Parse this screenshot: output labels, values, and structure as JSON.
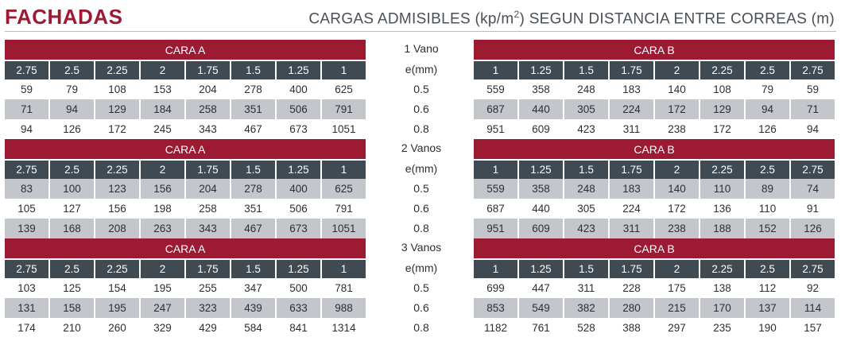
{
  "header": {
    "title": "FACHADAS",
    "subtitle": "CARGAS ADMISIBLES (kp/m2) SEGUN DISTANCIA ENTRE CORREAS (m)"
  },
  "colors": {
    "accent": "#9c1a32",
    "dark_header": "#3f4a53",
    "shade_row": "#c3c7cc"
  },
  "left_face": "CARA A",
  "right_face": "CARA B",
  "e_label": "e(mm)",
  "left_distances": [
    "2.75",
    "2.5",
    "2.25",
    "2",
    "1.75",
    "1.5",
    "1.25",
    "1"
  ],
  "right_distances": [
    "1",
    "1.25",
    "1.5",
    "1.75",
    "2",
    "2.25",
    "2.5",
    "2.75"
  ],
  "blocks": [
    {
      "vano": "1 Vano",
      "thickness": [
        "0.5",
        "0.6",
        "0.8"
      ],
      "left_rows": [
        [
          "59",
          "79",
          "108",
          "153",
          "204",
          "278",
          "400",
          "625"
        ],
        [
          "71",
          "94",
          "129",
          "184",
          "258",
          "351",
          "506",
          "791"
        ],
        [
          "94",
          "126",
          "172",
          "245",
          "343",
          "467",
          "673",
          "1051"
        ]
      ],
      "right_rows": [
        [
          "559",
          "358",
          "248",
          "183",
          "140",
          "108",
          "79",
          "59"
        ],
        [
          "687",
          "440",
          "305",
          "224",
          "172",
          "129",
          "94",
          "71"
        ],
        [
          "951",
          "609",
          "423",
          "311",
          "238",
          "172",
          "126",
          "94"
        ]
      ]
    },
    {
      "vano": "2 Vanos",
      "thickness": [
        "0.5",
        "0.6",
        "0.8"
      ],
      "left_rows": [
        [
          "83",
          "100",
          "123",
          "156",
          "204",
          "278",
          "400",
          "625"
        ],
        [
          "105",
          "127",
          "156",
          "198",
          "258",
          "351",
          "506",
          "791"
        ],
        [
          "139",
          "168",
          "208",
          "263",
          "343",
          "467",
          "673",
          "1051"
        ]
      ],
      "right_rows": [
        [
          "559",
          "358",
          "248",
          "183",
          "140",
          "110",
          "89",
          "74"
        ],
        [
          "687",
          "440",
          "305",
          "224",
          "172",
          "136",
          "110",
          "91"
        ],
        [
          "951",
          "609",
          "423",
          "311",
          "238",
          "188",
          "152",
          "126"
        ]
      ]
    },
    {
      "vano": "3 Vanos",
      "thickness": [
        "0.5",
        "0.6",
        "0.8"
      ],
      "left_rows": [
        [
          "103",
          "125",
          "154",
          "195",
          "255",
          "347",
          "500",
          "781"
        ],
        [
          "131",
          "158",
          "195",
          "247",
          "323",
          "439",
          "633",
          "988"
        ],
        [
          "174",
          "210",
          "260",
          "329",
          "429",
          "584",
          "841",
          "1314"
        ]
      ],
      "right_rows": [
        [
          "699",
          "447",
          "311",
          "228",
          "175",
          "138",
          "112",
          "92"
        ],
        [
          "853",
          "549",
          "382",
          "280",
          "215",
          "170",
          "137",
          "114"
        ],
        [
          "1182",
          "761",
          "528",
          "388",
          "297",
          "235",
          "190",
          "157"
        ]
      ]
    }
  ]
}
